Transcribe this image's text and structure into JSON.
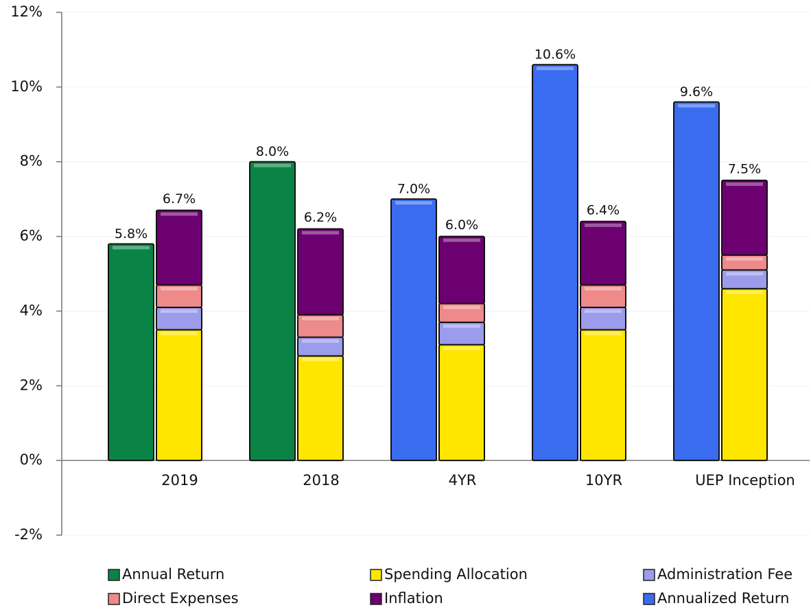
{
  "chart_data": {
    "type": "bar",
    "categories": [
      "2019",
      "2018",
      "4YR",
      "10YR",
      "UEP Inception"
    ],
    "series": [
      {
        "name": "Annual Return",
        "color": "#0a8446",
        "stack": "return",
        "values": [
          5.8,
          8.0,
          null,
          null,
          null
        ],
        "value_labels": [
          "5.8%",
          "8.0%",
          null,
          null,
          null
        ]
      },
      {
        "name": "Spending Allocation",
        "color": "#ffe600",
        "stack": "cost",
        "values": [
          3.5,
          2.8,
          3.1,
          3.5,
          4.6
        ]
      },
      {
        "name": "Administration Fee",
        "color": "#9c9cec",
        "stack": "cost",
        "values": [
          0.6,
          0.5,
          0.6,
          0.6,
          0.5
        ]
      },
      {
        "name": "Direct Expenses",
        "color": "#ee8a8a",
        "stack": "cost",
        "values": [
          0.6,
          0.6,
          0.5,
          0.6,
          0.4
        ]
      },
      {
        "name": "Inflation",
        "color": "#6c0070",
        "stack": "cost",
        "values": [
          2.0,
          2.3,
          1.8,
          1.7,
          2.0
        ]
      },
      {
        "name": "Annualized Return",
        "color": "#3a6cf0",
        "stack": "return",
        "values": [
          null,
          null,
          7.0,
          10.6,
          9.6
        ],
        "value_labels": [
          null,
          null,
          "7.0%",
          "10.6%",
          "9.6%"
        ]
      }
    ],
    "stack_totals": [
      6.7,
      6.2,
      6.0,
      6.4,
      7.5
    ],
    "stack_total_labels": [
      "6.7%",
      "6.2%",
      "6.0%",
      "6.4%",
      "7.5%"
    ],
    "ylim": [
      -2,
      12
    ],
    "yticks": [
      {
        "value": -2,
        "label": "-2%"
      },
      {
        "value": 0,
        "label": "0%"
      },
      {
        "value": 2,
        "label": "2%"
      },
      {
        "value": 4,
        "label": "4%"
      },
      {
        "value": 6,
        "label": "6%"
      },
      {
        "value": 8,
        "label": "8%"
      },
      {
        "value": 10,
        "label": "10%"
      },
      {
        "value": 12,
        "label": "12%"
      }
    ],
    "grid": true,
    "legend": "bottom"
  }
}
